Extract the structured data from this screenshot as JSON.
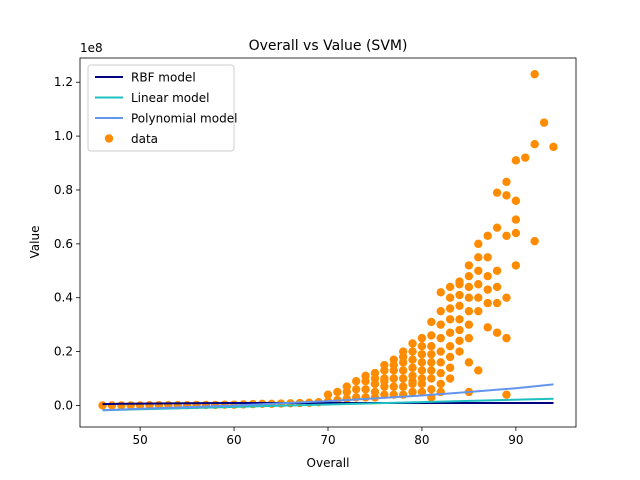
{
  "chart_data": {
    "type": "scatter",
    "title": "Overall vs Value (SVM)",
    "xlabel": "Overall",
    "ylabel": "Value",
    "y_scale_label": "1e8",
    "xlim": [
      43.6,
      96.4
    ],
    "ylim": [
      -0.08,
      1.29
    ],
    "y_unit_multiplier": 100000000,
    "x_ticks": [
      50,
      60,
      70,
      80,
      90
    ],
    "y_ticks": [
      0.0,
      0.2,
      0.4,
      0.6,
      0.8,
      1.0,
      1.2
    ],
    "y_tick_labels": [
      "0.0",
      "0.2",
      "0.4",
      "0.6",
      "0.8",
      "1.0",
      "1.2"
    ],
    "grid": false,
    "legend_position": "top-left",
    "legend": [
      {
        "label": "RBF model",
        "kind": "line",
        "color": "#000080"
      },
      {
        "label": "Linear model",
        "kind": "line",
        "color": "#1fc0c0"
      },
      {
        "label": "Polynomial model",
        "kind": "line",
        "color": "#6495ed"
      },
      {
        "label": "data",
        "kind": "marker",
        "color": "#ff8c00"
      }
    ],
    "series": [
      {
        "name": "RBF model",
        "type": "line",
        "color": "#000080",
        "x": [
          46,
          48,
          50,
          55,
          60,
          65,
          70,
          75,
          80,
          85,
          90,
          94
        ],
        "y": [
          0.005,
          0.006,
          0.007,
          0.008,
          0.009,
          0.009,
          0.009,
          0.009,
          0.009,
          0.009,
          0.009,
          0.009
        ]
      },
      {
        "name": "Linear model",
        "type": "line",
        "color": "#1fc0c0",
        "x": [
          46,
          94
        ],
        "y": [
          -0.018,
          0.025
        ]
      },
      {
        "name": "Polynomial model",
        "type": "line",
        "color": "#6495ed",
        "x": [
          46,
          50,
          55,
          60,
          65,
          70,
          75,
          80,
          85,
          90,
          94
        ],
        "y": [
          -0.018,
          -0.012,
          -0.006,
          0.0,
          0.008,
          0.016,
          0.026,
          0.037,
          0.05,
          0.064,
          0.078
        ]
      },
      {
        "name": "data",
        "type": "scatter",
        "color": "#ff8c00",
        "x": [
          46,
          47,
          48,
          49,
          50,
          51,
          52,
          53,
          54,
          55,
          56,
          57,
          58,
          59,
          60,
          61,
          62,
          63,
          64,
          65,
          66,
          67,
          68,
          69,
          70,
          70,
          71,
          71,
          72,
          72,
          72,
          73,
          73,
          73,
          74,
          74,
          74,
          74,
          75,
          75,
          75,
          75,
          75,
          76,
          76,
          76,
          76,
          76,
          77,
          77,
          77,
          77,
          77,
          77,
          78,
          78,
          78,
          78,
          78,
          78,
          78,
          79,
          79,
          79,
          79,
          79,
          79,
          79,
          80,
          80,
          80,
          80,
          80,
          80,
          80,
          80,
          81,
          81,
          81,
          81,
          81,
          81,
          81,
          81,
          82,
          82,
          82,
          82,
          82,
          82,
          82,
          82,
          82,
          83,
          83,
          83,
          83,
          83,
          83,
          83,
          83,
          83,
          84,
          84,
          84,
          84,
          84,
          84,
          84,
          84,
          85,
          85,
          85,
          85,
          85,
          85,
          85,
          85,
          86,
          86,
          86,
          86,
          86,
          86,
          86,
          87,
          87,
          87,
          87,
          87,
          87,
          88,
          88,
          88,
          88,
          88,
          88,
          89,
          89,
          89,
          89,
          89,
          90,
          90,
          90,
          90,
          90,
          91,
          92,
          92,
          92,
          93,
          94,
          76,
          79,
          81,
          85,
          89
        ],
        "y": [
          0.0,
          0.0,
          0.0,
          0.0,
          0.0,
          0.001,
          0.001,
          0.001,
          0.001,
          0.001,
          0.002,
          0.002,
          0.002,
          0.003,
          0.003,
          0.004,
          0.005,
          0.006,
          0.006,
          0.007,
          0.008,
          0.009,
          0.01,
          0.012,
          0.015,
          0.04,
          0.02,
          0.05,
          0.025,
          0.05,
          0.07,
          0.03,
          0.06,
          0.09,
          0.03,
          0.06,
          0.09,
          0.11,
          0.03,
          0.05,
          0.08,
          0.1,
          0.12,
          0.04,
          0.07,
          0.1,
          0.13,
          0.15,
          0.04,
          0.07,
          0.1,
          0.13,
          0.15,
          0.17,
          0.04,
          0.07,
          0.1,
          0.13,
          0.16,
          0.18,
          0.2,
          0.05,
          0.08,
          0.11,
          0.14,
          0.17,
          0.2,
          0.23,
          0.05,
          0.08,
          0.1,
          0.13,
          0.16,
          0.19,
          0.22,
          0.25,
          0.06,
          0.1,
          0.13,
          0.16,
          0.19,
          0.22,
          0.26,
          0.31,
          0.05,
          0.08,
          0.12,
          0.16,
          0.2,
          0.25,
          0.3,
          0.35,
          0.42,
          0.1,
          0.14,
          0.18,
          0.22,
          0.27,
          0.32,
          0.36,
          0.4,
          0.44,
          0.2,
          0.24,
          0.28,
          0.32,
          0.37,
          0.41,
          0.45,
          0.46,
          0.05,
          0.25,
          0.3,
          0.35,
          0.4,
          0.44,
          0.48,
          0.52,
          0.13,
          0.35,
          0.4,
          0.45,
          0.5,
          0.55,
          0.6,
          0.29,
          0.38,
          0.43,
          0.48,
          0.55,
          0.63,
          0.27,
          0.38,
          0.44,
          0.5,
          0.66,
          0.79,
          0.04,
          0.4,
          0.63,
          0.78,
          0.83,
          0.52,
          0.64,
          0.69,
          0.76,
          0.91,
          0.92,
          0.61,
          0.97,
          1.23,
          1.05,
          0.96,
          0.09,
          0.09,
          0.03,
          0.16,
          0.25
        ]
      }
    ]
  }
}
